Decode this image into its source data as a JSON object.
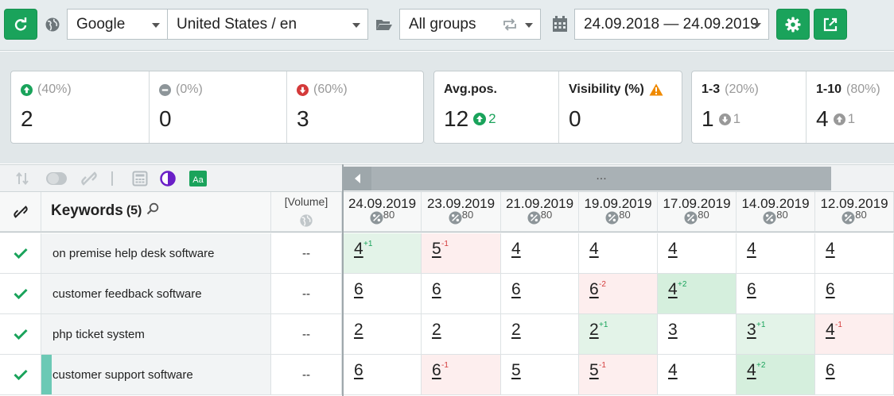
{
  "toolbar": {
    "search_engine": "Google",
    "region": "United States / en",
    "group": "All groups",
    "date_range": "24.09.2018 — 24.09.2019"
  },
  "stats": {
    "up": {
      "percent": "(40%)",
      "count": "2"
    },
    "same": {
      "percent": "(0%)",
      "count": "0"
    },
    "down": {
      "percent": "(60%)",
      "count": "3"
    },
    "avg_pos": {
      "label": "Avg.pos.",
      "value": "12",
      "change": "2"
    },
    "visibility": {
      "label": "Visibility (%)",
      "value": "0"
    },
    "top3": {
      "label": "1-3",
      "percent": "(20%)",
      "value": "1",
      "change": "1"
    },
    "top10": {
      "label": "1-10",
      "percent": "(80%)",
      "value": "4",
      "change": "1"
    }
  },
  "table": {
    "scroll_label": "...",
    "keywords_header": "Keywords",
    "keywords_count": "(5)",
    "volume_header": "[Volume]",
    "dates": [
      {
        "date": "24.09.2019",
        "pct": "80"
      },
      {
        "date": "23.09.2019",
        "pct": "80"
      },
      {
        "date": "21.09.2019",
        "pct": "80"
      },
      {
        "date": "19.09.2019",
        "pct": "80"
      },
      {
        "date": "17.09.2019",
        "pct": "80"
      },
      {
        "date": "14.09.2019",
        "pct": "80"
      },
      {
        "date": "12.09.2019",
        "pct": "80"
      }
    ],
    "rows": [
      {
        "keyword": "on premise help desk software",
        "volume": "--",
        "positions": [
          {
            "v": "4",
            "d": "+1",
            "t": "up"
          },
          {
            "v": "5",
            "d": "-1",
            "t": "down"
          },
          {
            "v": "4"
          },
          {
            "v": "4"
          },
          {
            "v": "4"
          },
          {
            "v": "4"
          },
          {
            "v": "4"
          }
        ]
      },
      {
        "keyword": "customer feedback software",
        "volume": "--",
        "positions": [
          {
            "v": "6"
          },
          {
            "v": "6"
          },
          {
            "v": "6"
          },
          {
            "v": "6",
            "d": "-2",
            "t": "down"
          },
          {
            "v": "4",
            "d": "+2",
            "t": "upstrong"
          },
          {
            "v": "6"
          },
          {
            "v": "6"
          }
        ]
      },
      {
        "keyword": "php ticket system",
        "volume": "--",
        "positions": [
          {
            "v": "2"
          },
          {
            "v": "2"
          },
          {
            "v": "2"
          },
          {
            "v": "2",
            "d": "+1",
            "t": "up"
          },
          {
            "v": "3"
          },
          {
            "v": "3",
            "d": "+1",
            "t": "up"
          },
          {
            "v": "4",
            "d": "-1",
            "t": "down"
          }
        ]
      },
      {
        "keyword": "customer support software",
        "volume": "--",
        "positions": [
          {
            "v": "6"
          },
          {
            "v": "6",
            "d": "-1",
            "t": "down"
          },
          {
            "v": "5"
          },
          {
            "v": "5",
            "d": "-1",
            "t": "down"
          },
          {
            "v": "4"
          },
          {
            "v": "4",
            "d": "+2",
            "t": "upstrong"
          },
          {
            "v": "6"
          }
        ]
      }
    ]
  },
  "colors": {
    "accent": "#1aa35b",
    "down": "#d43a3a",
    "warning": "#f08a00"
  }
}
